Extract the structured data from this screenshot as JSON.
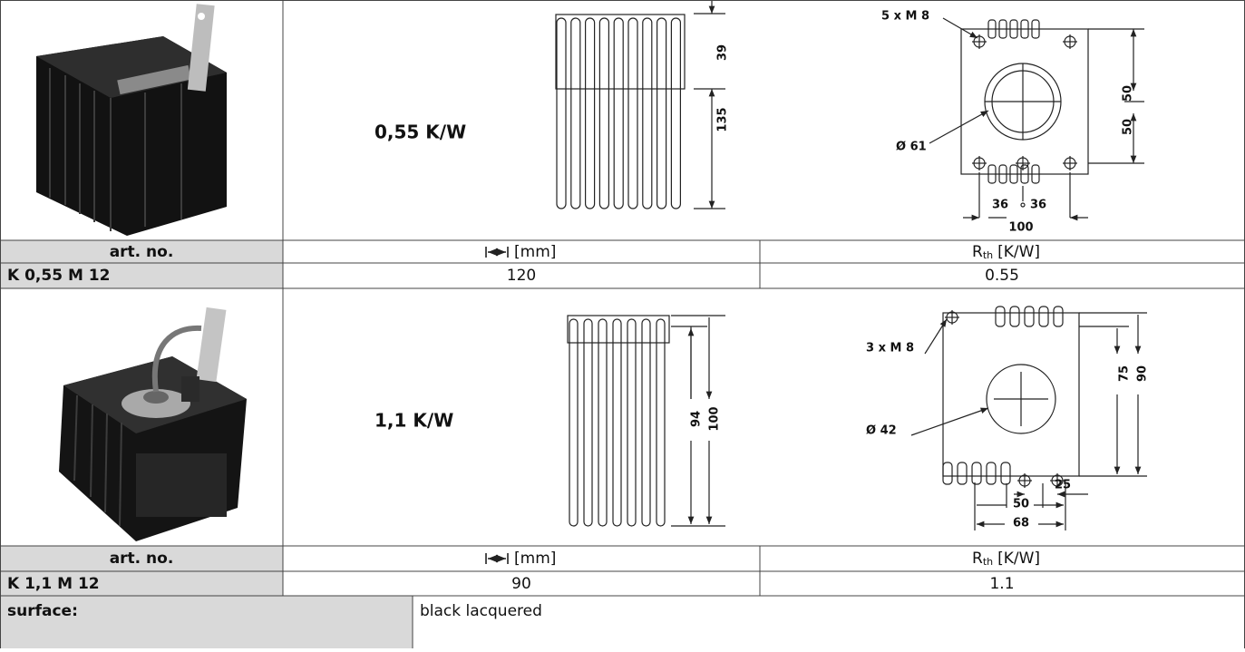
{
  "products": [
    {
      "rating": "0,55 K/W",
      "side_view": {
        "height_top": "39",
        "height_total": "135"
      },
      "top_view": {
        "holes": "5 x M 8",
        "diameter": "Ø 61",
        "spacing_upper": "50",
        "spacing_lower": "50",
        "half_left": "36",
        "half_right": "36",
        "width": "100"
      },
      "header": {
        "art_no": "art. no.",
        "length": "[mm]",
        "rth": "R",
        "rth_sub": "th",
        "rth_unit": "[K/W]"
      },
      "row": {
        "art_no": "K 0,55 M 12",
        "length": "120",
        "rth": "0.55"
      }
    },
    {
      "rating": "1,1 K/W",
      "side_view": {
        "height_fins": "94",
        "height_total": "100"
      },
      "top_view": {
        "holes": "3 x M 8",
        "diameter": "Ø 42",
        "height_inner": "75",
        "height_total": "90",
        "hole_spacing": "25",
        "width_inner": "50",
        "width": "68"
      },
      "header": {
        "art_no": "art. no.",
        "length": "[mm]",
        "rth": "R",
        "rth_sub": "th",
        "rth_unit": "[K/W]"
      },
      "row": {
        "art_no": "K 1,1 M 12",
        "length": "90",
        "rth": "1.1"
      }
    }
  ],
  "surface": {
    "label": "surface:",
    "value": "black lacquered"
  }
}
